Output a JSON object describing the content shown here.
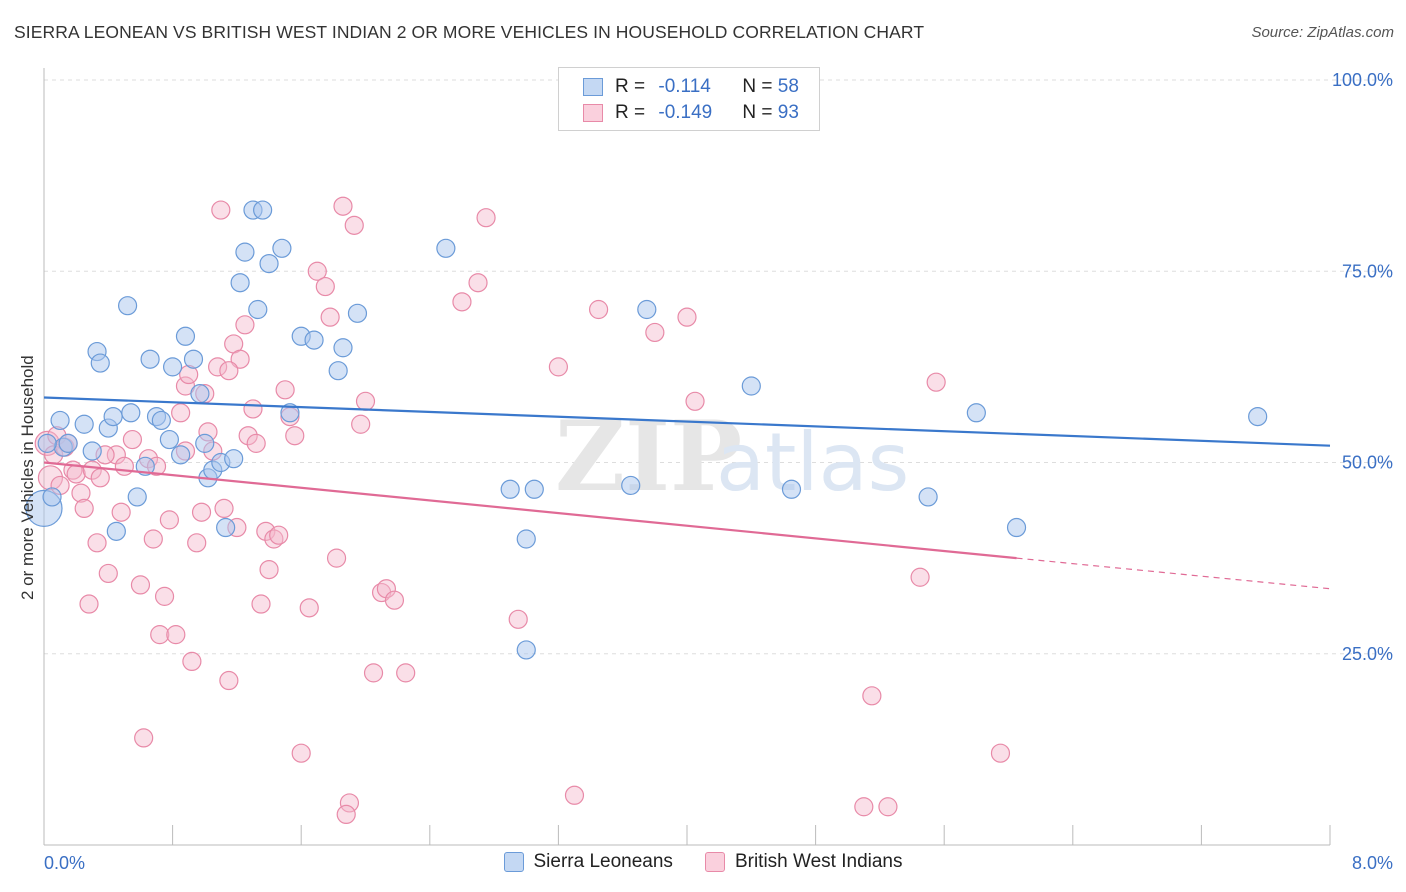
{
  "header": {
    "title": "SIERRA LEONEAN VS BRITISH WEST INDIAN 2 OR MORE VEHICLES IN HOUSEHOLD CORRELATION CHART",
    "source": "Source: ZipAtlas.com"
  },
  "legend": {
    "series1": {
      "r_label": "R = ",
      "r_value": "-0.114",
      "n_label": "N = ",
      "n_value": "58"
    },
    "series2": {
      "r_label": "R = ",
      "r_value": "-0.149",
      "n_label": "N = ",
      "n_value": "93"
    }
  },
  "bottom_legend": {
    "series1": "Sierra Leoneans",
    "series2": "British West Indians"
  },
  "colors": {
    "blue_fill": "#a9c6ee",
    "blue_stroke": "#6b9bd8",
    "blue_line": "#3a78cc",
    "pink_fill": "#f5b8cb",
    "pink_stroke": "#e88aa8",
    "pink_line": "#e06a95",
    "axis_text": "#3a6fc4",
    "grid": "#dddddd"
  },
  "chart_data": {
    "type": "scatter",
    "title": "SIERRA LEONEAN VS BRITISH WEST INDIAN 2 OR MORE VEHICLES IN HOUSEHOLD CORRELATION CHART",
    "xlabel": "",
    "ylabel": "2 or more Vehicles in Household",
    "xlim": [
      0,
      8
    ],
    "ylim": [
      0,
      100
    ],
    "x_tick_labels": [
      "0.0%",
      "8.0%"
    ],
    "y_ticks": [
      25,
      50,
      75,
      100
    ],
    "y_tick_labels": [
      "25.0%",
      "50.0%",
      "75.0%",
      "100.0%"
    ],
    "watermark": "ZIPatlas",
    "series": [
      {
        "name": "Sierra Leoneans",
        "color": "blue",
        "trend": {
          "x": [
            0,
            8
          ],
          "y": [
            58.5,
            52.2
          ]
        },
        "points": [
          [
            0.0,
            44.0
          ],
          [
            0.05,
            45.5
          ],
          [
            0.1,
            55.5
          ],
          [
            0.12,
            52.0
          ],
          [
            0.15,
            52.5
          ],
          [
            0.25,
            55.0
          ],
          [
            0.3,
            51.5
          ],
          [
            0.33,
            64.5
          ],
          [
            0.35,
            63.0
          ],
          [
            0.4,
            54.5
          ],
          [
            0.43,
            56.0
          ],
          [
            0.45,
            41.0
          ],
          [
            0.52,
            70.5
          ],
          [
            0.54,
            56.5
          ],
          [
            0.58,
            45.5
          ],
          [
            0.63,
            49.5
          ],
          [
            0.66,
            63.5
          ],
          [
            0.7,
            56.0
          ],
          [
            0.73,
            55.5
          ],
          [
            0.78,
            53.0
          ],
          [
            0.8,
            62.5
          ],
          [
            0.85,
            51.0
          ],
          [
            0.88,
            66.5
          ],
          [
            0.93,
            63.5
          ],
          [
            0.97,
            59.0
          ],
          [
            1.0,
            52.5
          ],
          [
            1.02,
            48.0
          ],
          [
            1.05,
            49.0
          ],
          [
            1.1,
            50.0
          ],
          [
            1.13,
            41.5
          ],
          [
            1.18,
            50.5
          ],
          [
            1.22,
            73.5
          ],
          [
            1.25,
            77.5
          ],
          [
            1.3,
            83.0
          ],
          [
            1.33,
            70.0
          ],
          [
            1.36,
            83.0
          ],
          [
            1.4,
            76.0
          ],
          [
            1.48,
            78.0
          ],
          [
            1.53,
            56.5
          ],
          [
            1.6,
            66.5
          ],
          [
            1.68,
            66.0
          ],
          [
            1.83,
            62.0
          ],
          [
            1.86,
            65.0
          ],
          [
            1.95,
            69.5
          ],
          [
            2.5,
            78.0
          ],
          [
            2.9,
            46.5
          ],
          [
            3.05,
            46.5
          ],
          [
            3.0,
            40.0
          ],
          [
            3.0,
            25.5
          ],
          [
            3.65,
            47.0
          ],
          [
            3.75,
            70.0
          ],
          [
            4.4,
            60.0
          ],
          [
            4.65,
            46.5
          ],
          [
            5.5,
            45.5
          ],
          [
            5.8,
            56.5
          ],
          [
            6.05,
            41.5
          ],
          [
            7.55,
            56.0
          ],
          [
            0.02,
            52.5
          ]
        ]
      },
      {
        "name": "British West Indians",
        "color": "pink",
        "trend": {
          "x": [
            0,
            6.05
          ],
          "y": [
            50.0,
            37.5
          ]
        },
        "trend_dashed": {
          "x": [
            6.05,
            8
          ],
          "y": [
            37.5,
            33.5
          ]
        },
        "points": [
          [
            0.02,
            52.5
          ],
          [
            0.04,
            48.0
          ],
          [
            0.06,
            51.0
          ],
          [
            0.08,
            53.5
          ],
          [
            0.1,
            47.0
          ],
          [
            0.13,
            52.0
          ],
          [
            0.15,
            52.5
          ],
          [
            0.18,
            49.0
          ],
          [
            0.2,
            48.5
          ],
          [
            0.23,
            46.0
          ],
          [
            0.25,
            44.0
          ],
          [
            0.28,
            31.5
          ],
          [
            0.3,
            49.0
          ],
          [
            0.33,
            39.5
          ],
          [
            0.35,
            48.0
          ],
          [
            0.4,
            35.5
          ],
          [
            0.45,
            51.0
          ],
          [
            0.48,
            43.5
          ],
          [
            0.5,
            49.5
          ],
          [
            0.55,
            53.0
          ],
          [
            0.6,
            34.0
          ],
          [
            0.62,
            14.0
          ],
          [
            0.65,
            50.5
          ],
          [
            0.68,
            40.0
          ],
          [
            0.7,
            49.5
          ],
          [
            0.72,
            27.5
          ],
          [
            0.75,
            32.5
          ],
          [
            0.78,
            42.5
          ],
          [
            0.82,
            27.5
          ],
          [
            0.85,
            56.5
          ],
          [
            0.88,
            60.0
          ],
          [
            0.9,
            61.5
          ],
          [
            0.92,
            24.0
          ],
          [
            0.95,
            39.5
          ],
          [
            0.98,
            43.5
          ],
          [
            1.0,
            59.0
          ],
          [
            1.02,
            54.0
          ],
          [
            1.05,
            51.5
          ],
          [
            1.08,
            62.5
          ],
          [
            1.1,
            83.0
          ],
          [
            1.12,
            44.0
          ],
          [
            1.15,
            21.5
          ],
          [
            1.18,
            65.5
          ],
          [
            1.2,
            41.5
          ],
          [
            1.22,
            63.5
          ],
          [
            1.25,
            68.0
          ],
          [
            1.27,
            53.5
          ],
          [
            1.3,
            57.0
          ],
          [
            1.32,
            52.5
          ],
          [
            1.35,
            31.5
          ],
          [
            1.38,
            41.0
          ],
          [
            1.4,
            36.0
          ],
          [
            1.43,
            40.0
          ],
          [
            1.46,
            40.5
          ],
          [
            1.5,
            59.5
          ],
          [
            1.53,
            56.0
          ],
          [
            1.56,
            53.5
          ],
          [
            1.6,
            12.0
          ],
          [
            1.65,
            31.0
          ],
          [
            1.7,
            75.0
          ],
          [
            1.75,
            73.0
          ],
          [
            1.78,
            69.0
          ],
          [
            1.82,
            37.5
          ],
          [
            1.86,
            83.5
          ],
          [
            1.9,
            5.5
          ],
          [
            1.93,
            81.0
          ],
          [
            1.97,
            55.0
          ],
          [
            2.0,
            58.0
          ],
          [
            2.05,
            22.5
          ],
          [
            2.1,
            33.0
          ],
          [
            2.13,
            33.5
          ],
          [
            2.18,
            32.0
          ],
          [
            2.25,
            22.5
          ],
          [
            2.6,
            71.0
          ],
          [
            2.7,
            73.5
          ],
          [
            2.75,
            82.0
          ],
          [
            2.95,
            29.5
          ],
          [
            3.2,
            62.5
          ],
          [
            3.3,
            6.5
          ],
          [
            3.45,
            70.0
          ],
          [
            3.8,
            67.0
          ],
          [
            4.0,
            69.0
          ],
          [
            4.05,
            58.0
          ],
          [
            5.1,
            5.0
          ],
          [
            5.15,
            19.5
          ],
          [
            5.25,
            5.0
          ],
          [
            5.45,
            35.0
          ],
          [
            5.55,
            60.5
          ],
          [
            5.95,
            12.0
          ],
          [
            1.88,
            4.0
          ],
          [
            1.15,
            62.0
          ],
          [
            0.38,
            51.0
          ],
          [
            0.88,
            51.5
          ]
        ]
      }
    ]
  }
}
